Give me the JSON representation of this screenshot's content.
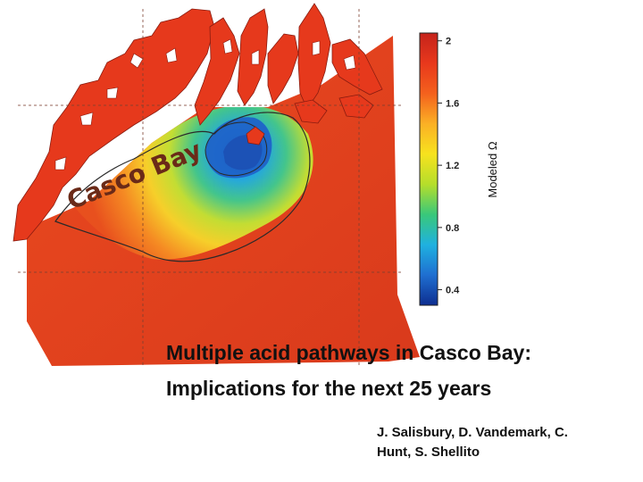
{
  "map": {
    "place_label": "Casco Bay",
    "colorbar": {
      "label": "Modeled Ω",
      "min": 0.3,
      "max": 2.05,
      "ticks": [
        {
          "value": 2,
          "label": "2"
        },
        {
          "value": 1.6,
          "label": "1.6"
        },
        {
          "value": 1.2,
          "label": "1.2"
        },
        {
          "value": 0.8,
          "label": "0.8"
        },
        {
          "value": 0.4,
          "label": "0.4"
        }
      ],
      "colormap": [
        "#0d2d8f",
        "#1f6fd1",
        "#1fb1e0",
        "#39c87a",
        "#b5de2b",
        "#f7e21e",
        "#fbb025",
        "#f4611d",
        "#e8381c",
        "#c5231b"
      ]
    }
  },
  "slide": {
    "title_line1": "Multiple acid pathways in Casco Bay:",
    "title_line2": "Implications for the next 25 years",
    "authors_line1": "J. Salisbury, D. Vandemark, C.",
    "authors_line2": "Hunt, S. Shellito"
  }
}
